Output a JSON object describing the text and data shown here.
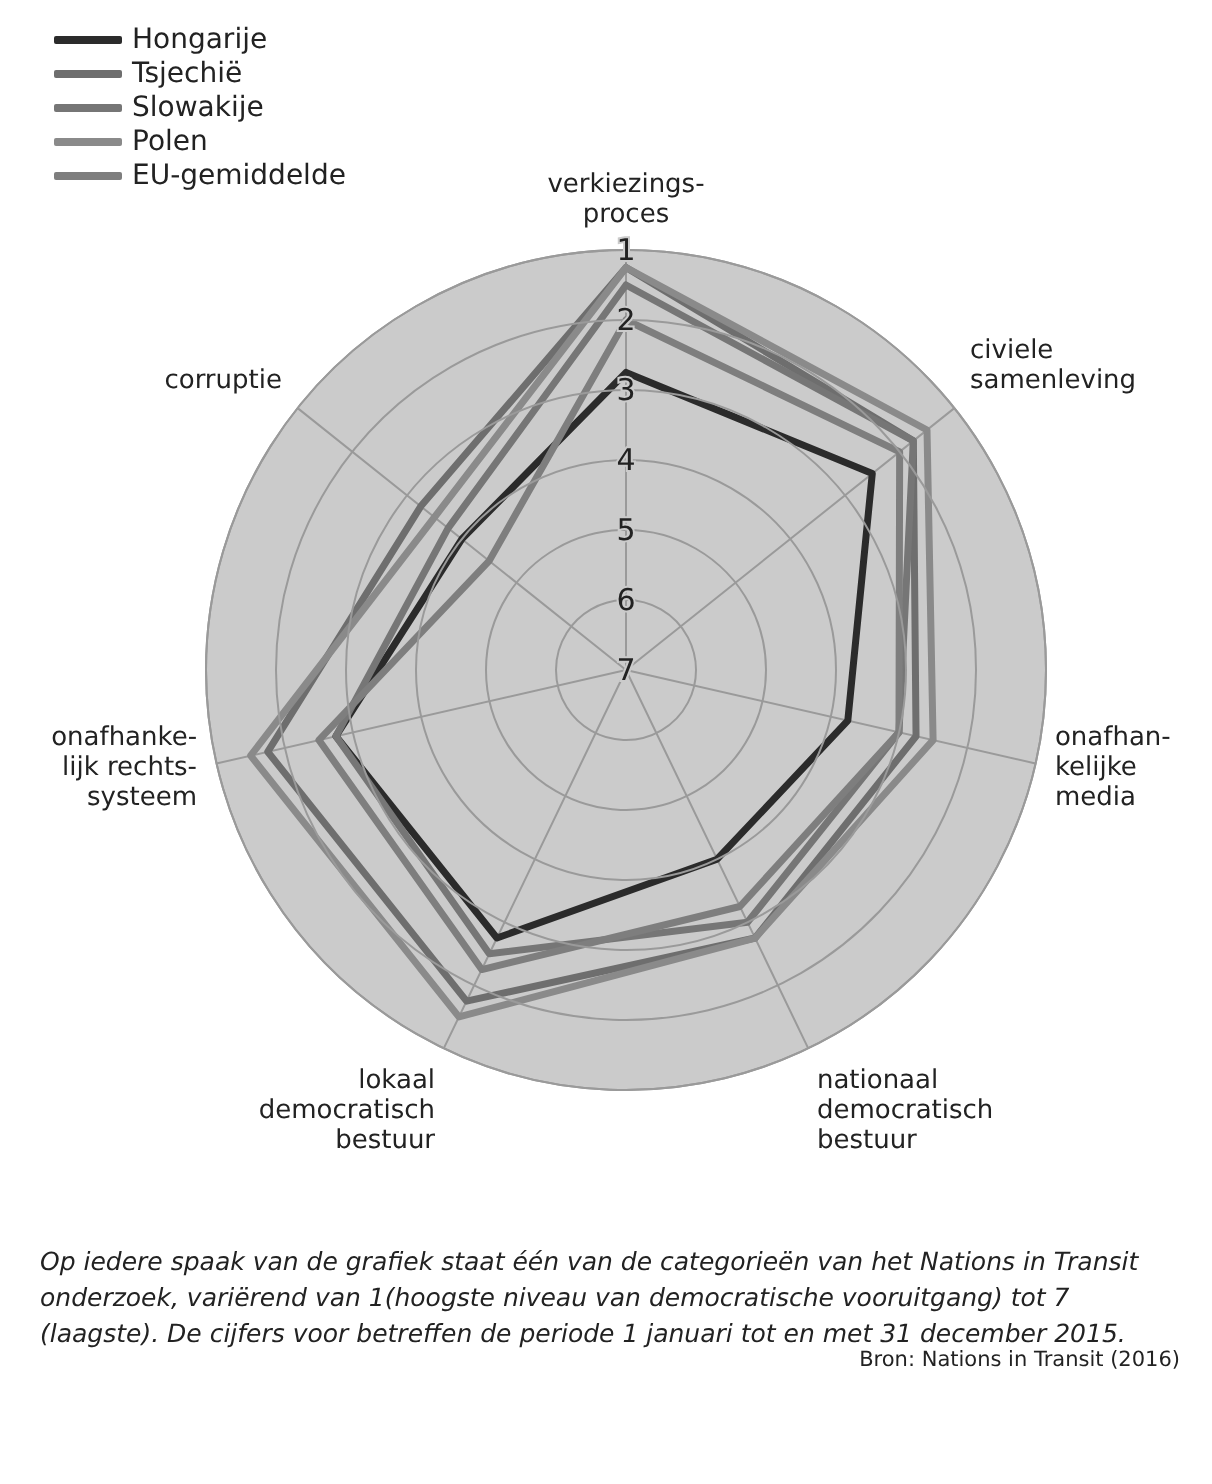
{
  "chart_data": {
    "type": "radar",
    "categories": [
      "verkiezings-\nproces",
      "civiele\nsamenleving",
      "onafhan-\nkelijke\nmedia",
      "nationaal\ndemocratisch\nbestuur",
      "lokaal\ndemocratisch\nbestuur",
      "onafhanke-\nlijk rechts-\nsysteem",
      "corruptie"
    ],
    "series": [
      {
        "name": "Hongarije",
        "color": "#2b2b2b",
        "values": [
          2.75,
          2.5,
          3.75,
          4.0,
          2.75,
          2.75,
          4.0
        ]
      },
      {
        "name": "Tsjechië",
        "color": "#6e6e6e",
        "values": [
          1.25,
          1.75,
          2.75,
          2.75,
          1.75,
          1.75,
          3.25
        ]
      },
      {
        "name": "Slowakije",
        "color": "#767676",
        "values": [
          1.5,
          1.75,
          3.0,
          3.0,
          2.5,
          2.75,
          3.75
        ]
      },
      {
        "name": "Polen",
        "color": "#8a8a8a",
        "values": [
          1.25,
          1.5,
          2.5,
          2.75,
          1.5,
          1.5,
          3.5
        ]
      },
      {
        "name": "EU-gemiddelde",
        "color": "#7e7e7e",
        "values": [
          2.0,
          2.0,
          3.0,
          3.25,
          2.25,
          2.5,
          4.5
        ]
      }
    ],
    "ylim": [
      7,
      1
    ],
    "yticks": [
      1,
      2,
      3,
      4,
      5,
      6,
      7
    ],
    "grid": true,
    "legend": "top left",
    "marker": "none",
    "line_style": "solid",
    "annotations": [
      "Op iedere spaak van de grafiek staat één van de categorieën van het Nations in Transit onderzoek, variërend van 1(hoogste niveau van democratische vooruitgang) tot 7 (laagste). De cijfers voor betreffen de periode 1 januari tot en met 31 december 2015.",
      "Bron: Nations in Transit (2016)"
    ]
  }
}
